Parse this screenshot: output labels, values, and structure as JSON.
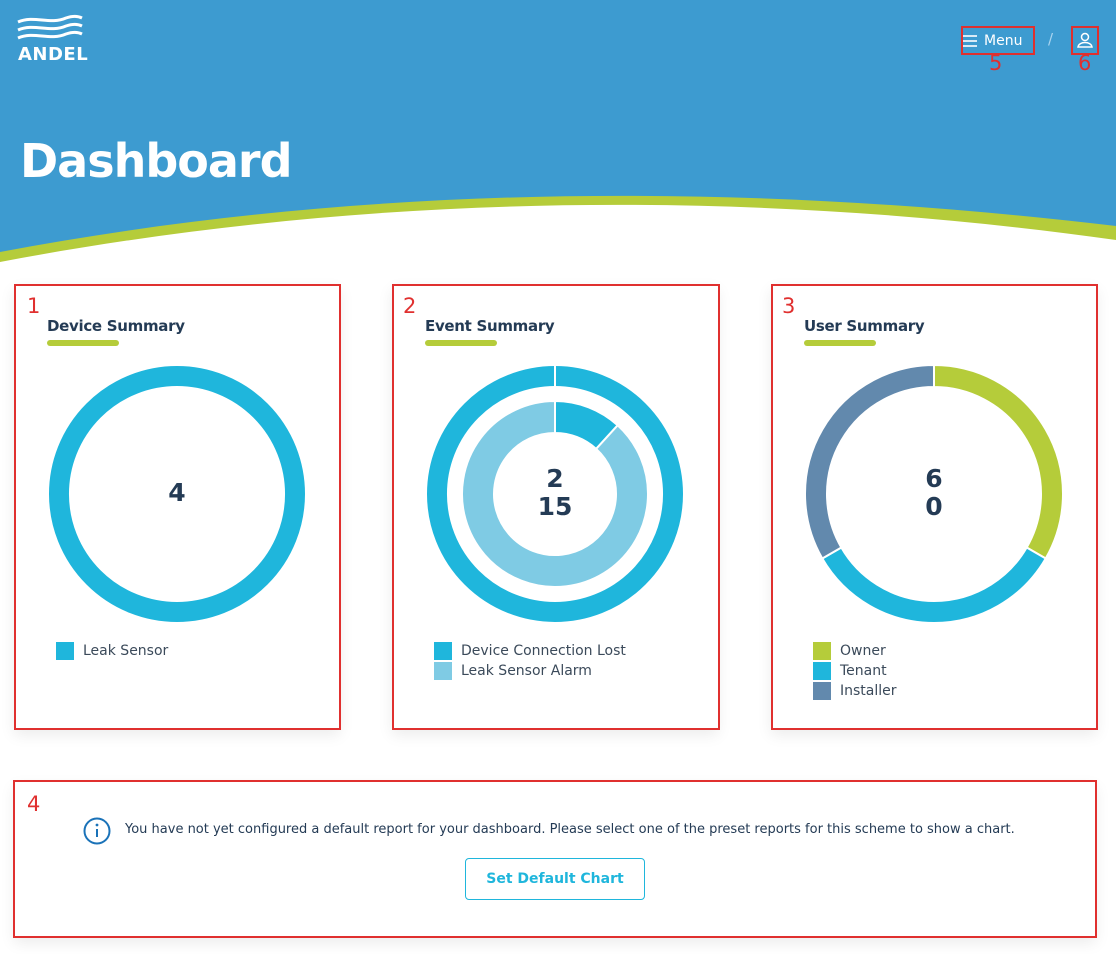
{
  "header": {
    "logo": "ANDEL",
    "menu": "Menu",
    "separator": "/",
    "title": "Dashboard"
  },
  "cards": [
    {
      "title": "Device Summary",
      "center": [
        4
      ],
      "legend": [
        {
          "name": "Leak Sensor",
          "color": "#1fb6dc"
        }
      ],
      "rings": [
        [
          4
        ]
      ]
    },
    {
      "title": "Event Summary",
      "center": [
        2,
        15
      ],
      "legend": [
        {
          "name": "Device Connection Lost",
          "color": "#1fb6dc"
        },
        {
          "name": "Leak Sensor Alarm",
          "color": "#7fcbe4"
        }
      ],
      "rings": [
        [
          2,
          0
        ],
        [
          2,
          15
        ]
      ]
    },
    {
      "title": "User Summary",
      "center": [
        6,
        0
      ],
      "legend": [
        {
          "name": "Owner",
          "color": "#b5cc3a"
        },
        {
          "name": "Tenant",
          "color": "#1fb6dc"
        },
        {
          "name": "Installer",
          "color": "#6289ad"
        }
      ],
      "rings": [
        [
          2,
          2,
          2
        ]
      ]
    }
  ],
  "notice": {
    "text": "You have not yet configured a default report for your dashboard. Please select one of the preset reports for this scheme to show a chart.",
    "button": "Set Default Chart"
  },
  "annotations": [
    "1",
    "2",
    "3",
    "4",
    "5",
    "6"
  ]
}
